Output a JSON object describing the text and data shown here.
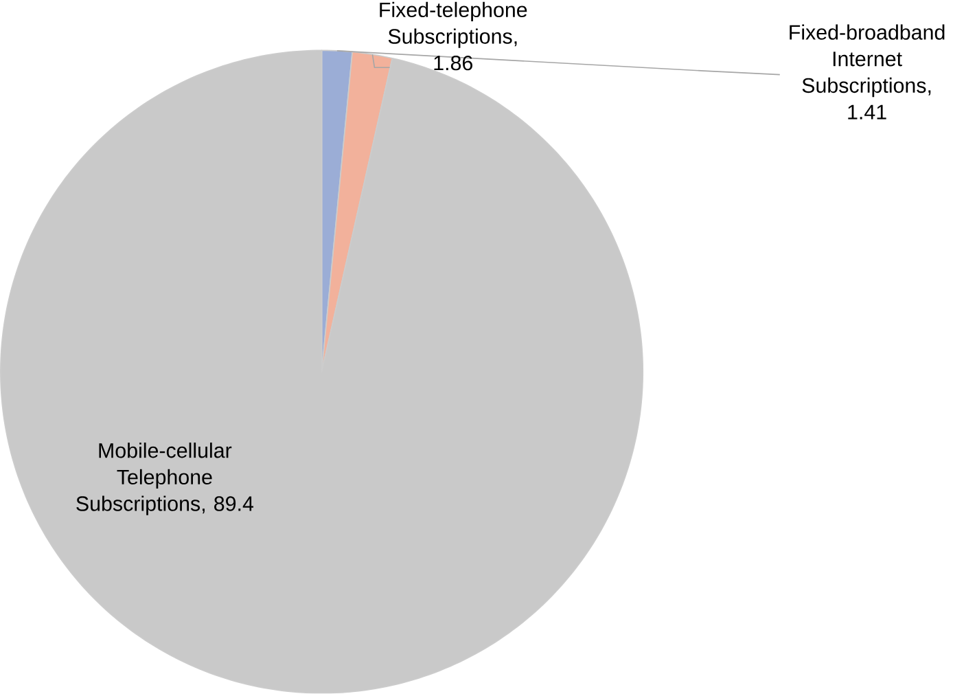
{
  "chart_data": {
    "type": "pie",
    "categories": [
      "Fixed-broadband Internet Subscriptions",
      "Fixed-telephone Subscriptions",
      "Mobile-cellular Telephone Subscriptions"
    ],
    "values": [
      1.41,
      1.86,
      89.4
    ],
    "colors": [
      "#9badd6",
      "#f2b19b",
      "#c9c9c9"
    ],
    "value_labels": [
      ", 1.41",
      ", 1.86",
      ", 89.4"
    ],
    "legend": false
  }
}
